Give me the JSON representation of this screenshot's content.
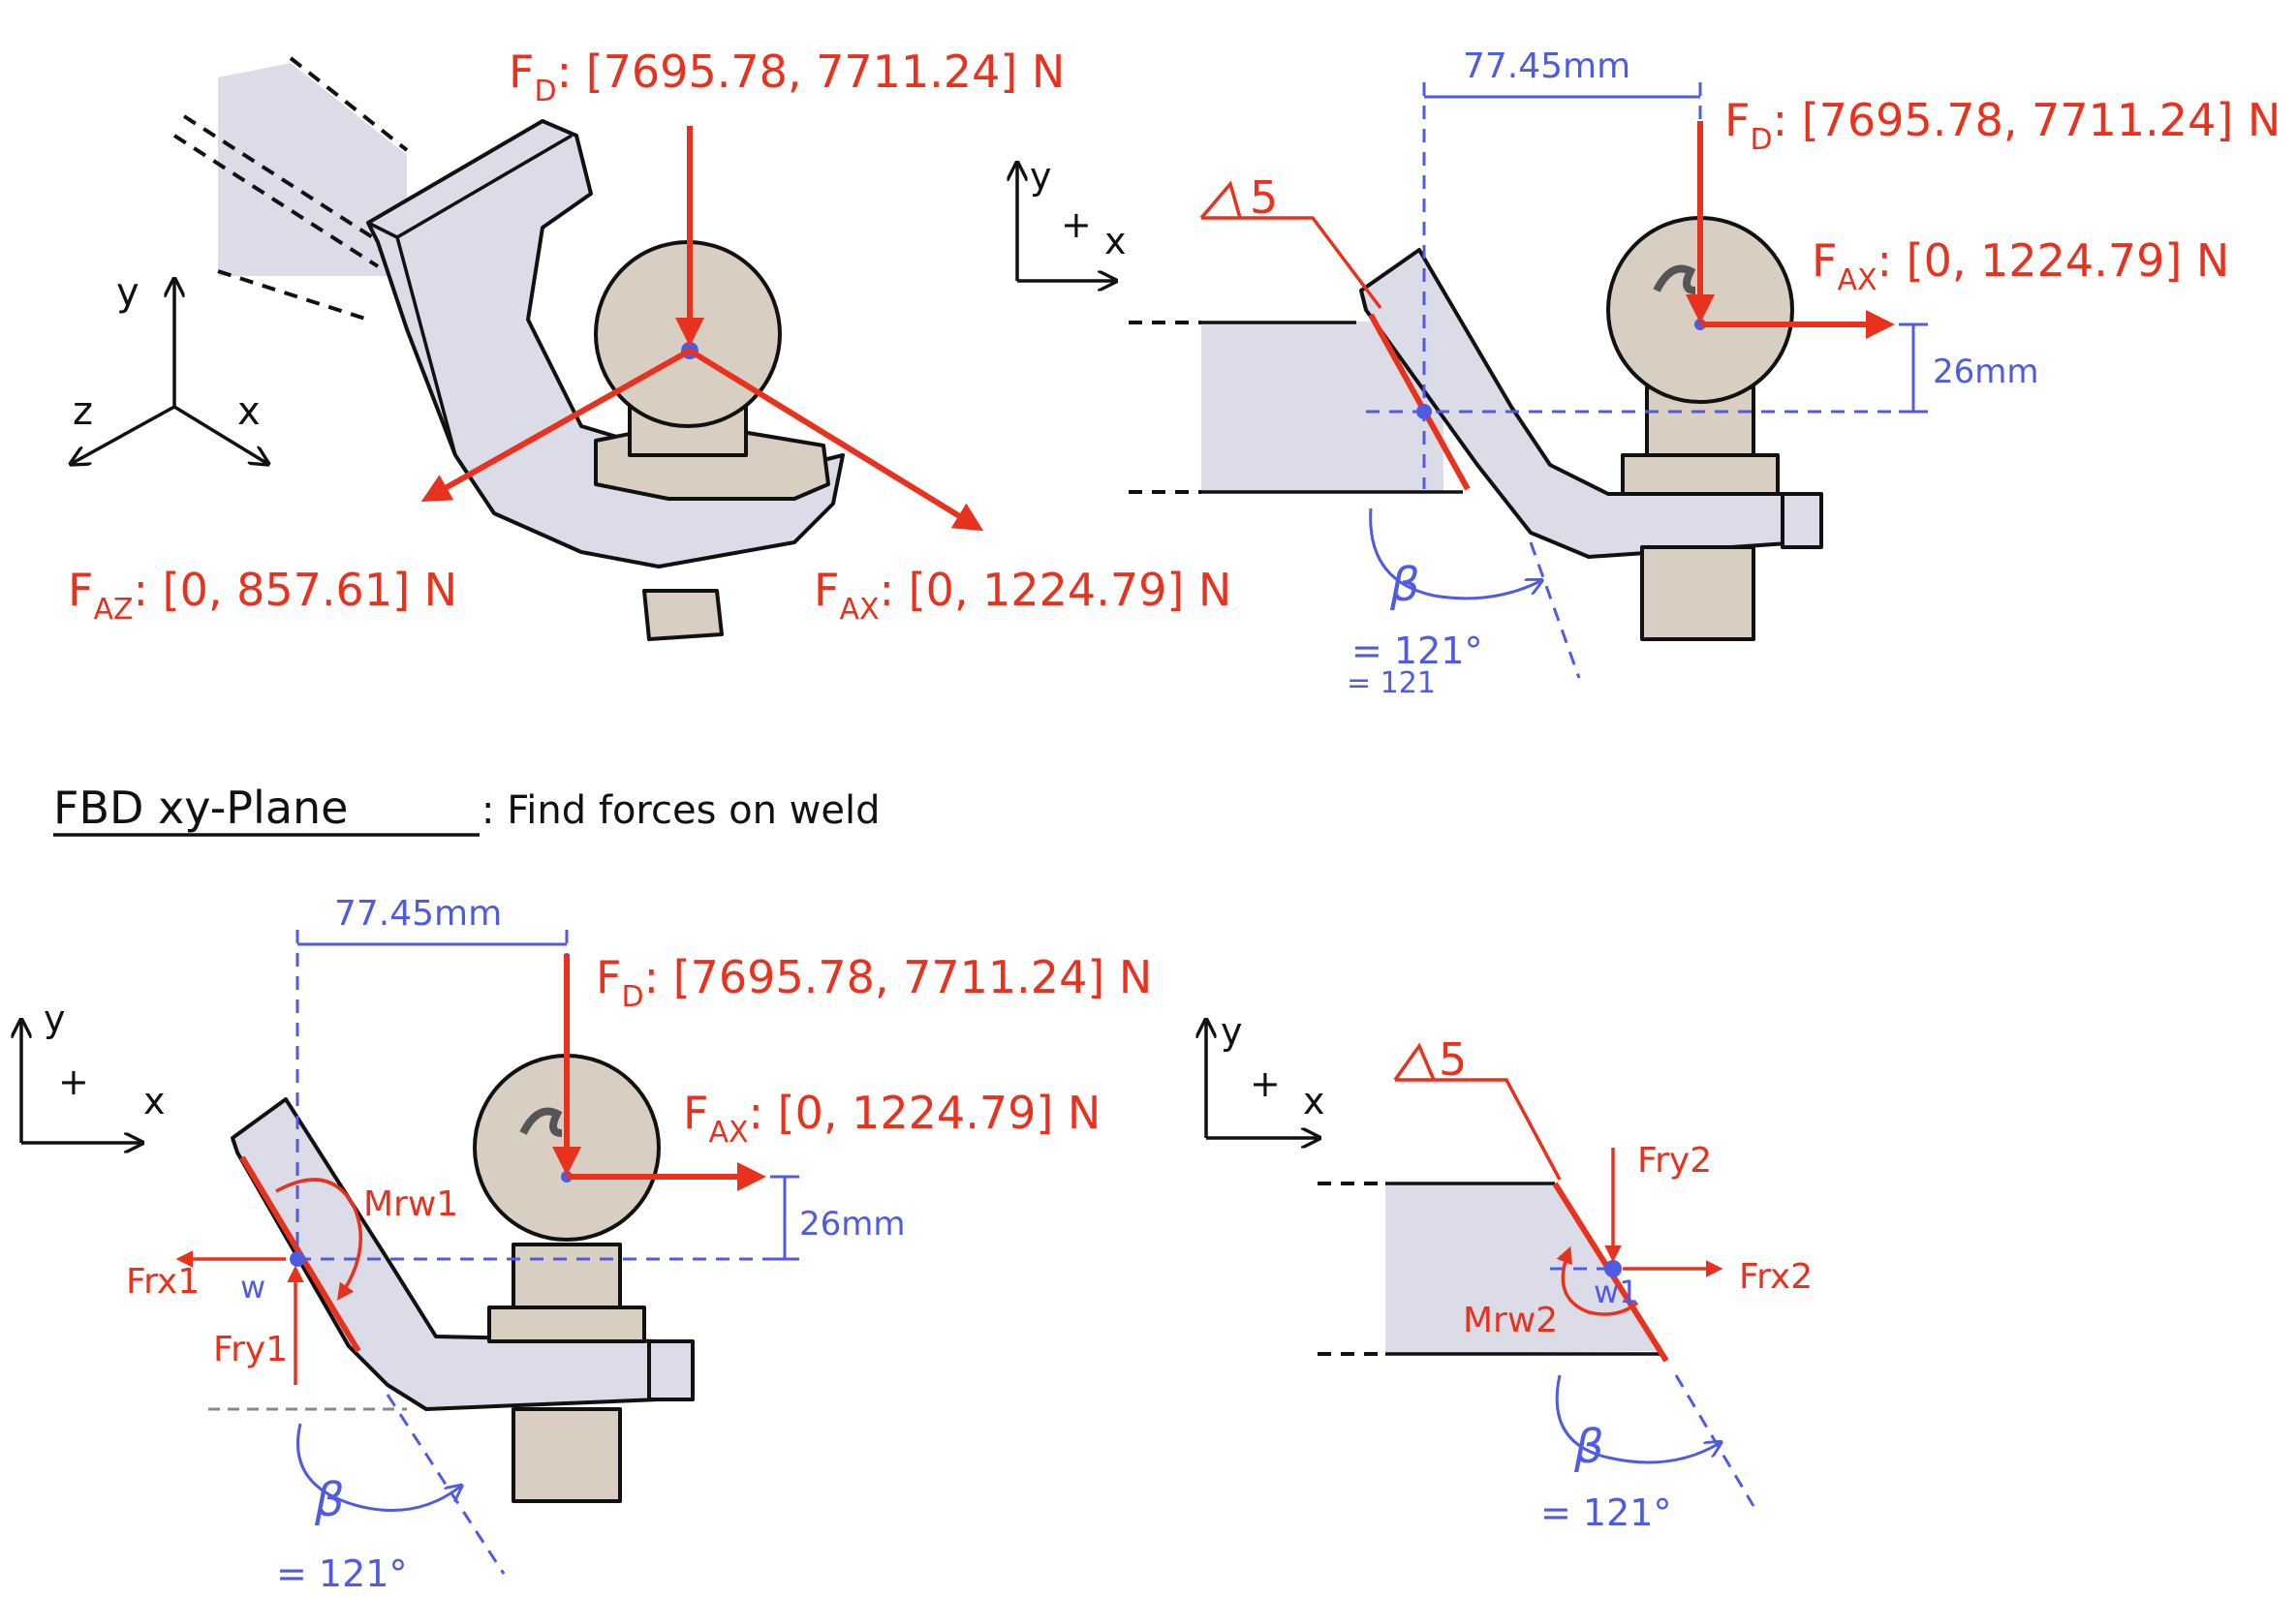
{
  "colors": {
    "force": "#e8321e",
    "dimension": "#4f5be0",
    "part": "#dcdbe8",
    "ball": "#d8cfc2"
  },
  "iso_view": {
    "fd_label": "F",
    "fd_sub": "D",
    "fd_value": ": [7695.78, 7711.24] N",
    "faz_label": "F",
    "faz_sub": "AZ",
    "faz_value": ": [0, 857.61] N",
    "fax_label": "F",
    "fax_sub": "AX",
    "fax_value": ": [0, 1224.79] N",
    "axis_y": "y",
    "axis_z": "z",
    "axis_x": "x"
  },
  "side_view": {
    "dim_horizontal": "77.45mm",
    "fd_label": "F",
    "fd_sub": "D",
    "fd_value": ": [7695.78, 7711.24] N",
    "fax_label": "F",
    "fax_sub": "AX",
    "fax_value": ": [0, 1224.79] N",
    "dim_vertical": "26mm",
    "weld_symbol": "5",
    "beta": "β",
    "beta_value": "= 121°",
    "beta_value_2": "= 121",
    "axis_y": "y",
    "axis_plus": "+",
    "axis_x": "x"
  },
  "section_title": {
    "underlined": "FBD xy-Plane",
    "rest": ": Find forces on weld"
  },
  "fbd_left": {
    "dim_horizontal": "77.45mm",
    "fd_label": "F",
    "fd_sub": "D",
    "fd_value": ": [7695.78, 7711.24] N",
    "fax_label": "F",
    "fax_sub": "AX",
    "fax_value": ": [0, 1224.79] N",
    "dim_vertical": "26mm",
    "moment": "Mrw1",
    "frx": "Frx1",
    "fry": "Fry1",
    "point": "w",
    "beta": "β",
    "beta_value": "= 121°",
    "axis_y": "y",
    "axis_plus": "+",
    "axis_x": "x"
  },
  "fbd_right": {
    "weld_symbol": "5",
    "fry": "Fry2",
    "frx": "Frx2",
    "point": "w1",
    "moment": "Mrw2",
    "beta": "β",
    "beta_value": "= 121°",
    "axis_y": "y",
    "axis_plus": "+",
    "axis_x": "x"
  }
}
